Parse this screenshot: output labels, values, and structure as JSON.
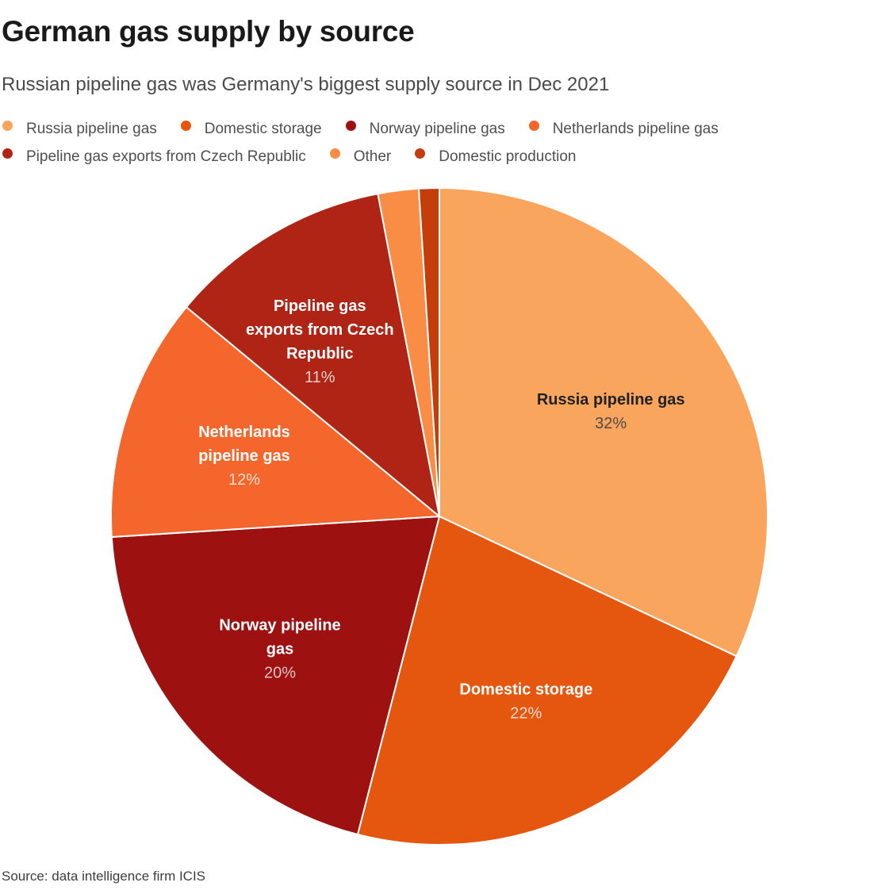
{
  "header": {
    "title": "German gas supply by source",
    "subtitle": "Russian pipeline gas was Germany's biggest supply source in Dec 2021"
  },
  "footer": {
    "source": "Source: data intelligence firm ICIS"
  },
  "colors": {
    "background": "#ffffff",
    "title_text": "#1a1a1a",
    "subtitle_text": "#4a4a4a",
    "legend_text": "#4f4f4f",
    "source_text": "#3d3d3d",
    "slice_divider": "#ffffff"
  },
  "chart_data": {
    "type": "pie",
    "title": "German gas supply by source",
    "subtitle": "Russian pipeline gas was Germany's biggest supply source in Dec 2021",
    "unit": "%",
    "start_angle_deg": 0,
    "direction": "clockwise",
    "legend_position": "top",
    "total": 100,
    "slices": [
      {
        "label": "Russia pipeline gas",
        "value": 32,
        "pct_label": "32%",
        "color": "#F9A55E",
        "label_lines": [
          "Russia pipeline gas"
        ],
        "name_color": "#212121",
        "pct_color": "#4f4a45"
      },
      {
        "label": "Domestic storage",
        "value": 22,
        "pct_label": "22%",
        "color": "#E5560E",
        "label_lines": [
          "Domestic storage"
        ],
        "name_color": "#ffffff",
        "pct_color": "#f6ddcf"
      },
      {
        "label": "Norway pipeline gas",
        "value": 20,
        "pct_label": "20%",
        "color": "#9E1111",
        "label_lines": [
          "Norway pipeline",
          "gas"
        ],
        "name_color": "#ffffff",
        "pct_color": "#dcc4c4"
      },
      {
        "label": "Netherlands pipeline gas",
        "value": 12,
        "pct_label": "12%",
        "color": "#F4662B",
        "label_lines": [
          "Netherlands",
          "pipeline gas"
        ],
        "name_color": "#ffffff",
        "pct_color": "#f8ddd0"
      },
      {
        "label": "Pipeline gas exports from Czech Republic",
        "value": 11,
        "pct_label": "11%",
        "color": "#B02415",
        "label_lines": [
          "Pipeline gas",
          "exports from Czech",
          "Republic"
        ],
        "name_color": "#ffffff",
        "pct_color": "#e5d0cb"
      },
      {
        "label": "Other",
        "value": 2,
        "pct_label": null,
        "color": "#FA8D45",
        "label_lines": null,
        "name_color": null,
        "pct_color": null
      },
      {
        "label": "Domestic production",
        "value": 1,
        "pct_label": null,
        "color": "#C43D0A",
        "label_lines": null,
        "name_color": null,
        "pct_color": null
      }
    ]
  }
}
